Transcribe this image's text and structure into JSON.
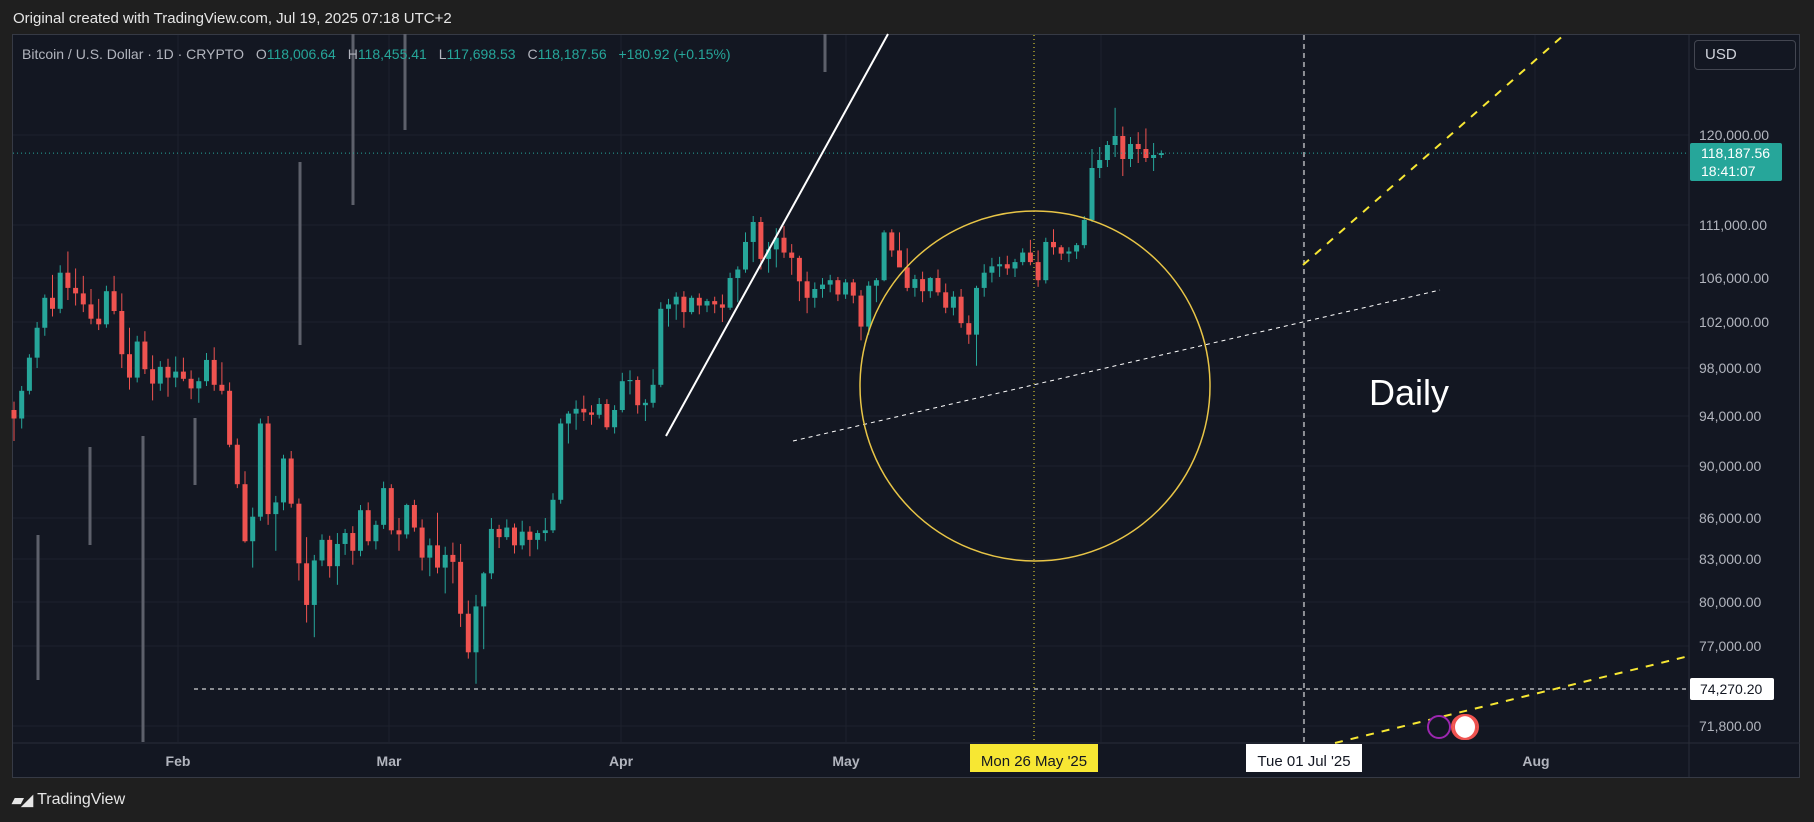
{
  "caption": "Original created with TradingView.com, Jul 19, 2025 07:18 UTC+2",
  "legend": {
    "symbol": "Bitcoin / U.S. Dollar · 1D · CRYPTO",
    "o_label": "O",
    "o_value": "118,006.64",
    "h_label": "H",
    "h_value": "118,455.41",
    "l_label": "L",
    "l_value": "117,698.53",
    "c_label": "C",
    "c_value": "118,187.56",
    "change": "+180.92 (+0.15%)"
  },
  "currency": "USD",
  "footer": {
    "brand": "TradingView"
  },
  "annotation": "Daily",
  "colors": {
    "up": "#26a69a",
    "down": "#ef5350",
    "bg": "#131722",
    "grid": "#1e222d",
    "accent_yellow": "#f7e733",
    "current_price_bg": "#26a69a"
  },
  "chart_data": {
    "type": "candlestick",
    "symbol": "BTCUSD",
    "timeframe": "1D",
    "yaxis_ticks": [
      "120,000.00",
      "111,000.00",
      "106,000.00",
      "102,000.00",
      "98,000.00",
      "94,000.00",
      "90,000.00",
      "86,000.00",
      "83,000.00",
      "80,000.00",
      "77,000.00",
      "71,800.00"
    ],
    "yaxis_tick_values": [
      120000,
      111000,
      106000,
      102000,
      98000,
      94000,
      90000,
      86000,
      83000,
      80000,
      77000,
      71800
    ],
    "xaxis_ticks": [
      "Feb",
      "Mar",
      "Apr",
      "May",
      "Aug"
    ],
    "crosshair_dates": [
      "Mon 26 May '25",
      "Tue 01 Jul '25"
    ],
    "price_labels": {
      "current_price": "118,187.56",
      "countdown": "18:41:07",
      "horizontal_level": "74,270.20"
    },
    "horizontal_level": 74270.2,
    "last_close": 118187.56,
    "candles_ohlc": [
      [
        94500,
        95200,
        92000,
        93800
      ],
      [
        93800,
        96500,
        93000,
        96100
      ],
      [
        96100,
        99200,
        95800,
        98900
      ],
      [
        98900,
        102000,
        98000,
        101500
      ],
      [
        101500,
        104500,
        100800,
        104200
      ],
      [
        104200,
        106300,
        102500,
        103200
      ],
      [
        103200,
        107200,
        102800,
        106500
      ],
      [
        106500,
        108500,
        104000,
        105100
      ],
      [
        105100,
        106900,
        103500,
        104600
      ],
      [
        104600,
        106200,
        102900,
        103600
      ],
      [
        103600,
        105000,
        101800,
        102300
      ],
      [
        102300,
        104100,
        101300,
        101800
      ],
      [
        101800,
        105300,
        101500,
        104800
      ],
      [
        104800,
        106200,
        102700,
        103000
      ],
      [
        103000,
        104600,
        98000,
        99200
      ],
      [
        99200,
        101500,
        96200,
        97200
      ],
      [
        97200,
        100800,
        96800,
        100300
      ],
      [
        100300,
        101200,
        97500,
        97900
      ],
      [
        97900,
        99100,
        95300,
        96700
      ],
      [
        96700,
        98600,
        96100,
        98100
      ],
      [
        98100,
        98800,
        95600,
        97200
      ],
      [
        97200,
        99000,
        96400,
        97700
      ],
      [
        97700,
        98900,
        96900,
        97100
      ],
      [
        97100,
        97800,
        95400,
        96300
      ],
      [
        96300,
        97200,
        95100,
        96900
      ],
      [
        96900,
        99300,
        96500,
        98700
      ],
      [
        98700,
        99800,
        96100,
        96600
      ],
      [
        96600,
        98500,
        95800,
        96100
      ],
      [
        96100,
        96800,
        91500,
        91700
      ],
      [
        91700,
        92200,
        88300,
        88600
      ],
      [
        88600,
        89600,
        84200,
        84300
      ],
      [
        84300,
        86800,
        82400,
        86100
      ],
      [
        86100,
        93800,
        85800,
        93400
      ],
      [
        93400,
        94000,
        85500,
        86300
      ],
      [
        86300,
        87700,
        83600,
        87200
      ],
      [
        87200,
        90900,
        86600,
        90600
      ],
      [
        90600,
        91200,
        86800,
        87100
      ],
      [
        87100,
        87500,
        81500,
        82700
      ],
      [
        82700,
        84600,
        78600,
        79800
      ],
      [
        79800,
        83300,
        77600,
        82900
      ],
      [
        82900,
        84800,
        82500,
        84400
      ],
      [
        84400,
        84700,
        81700,
        82500
      ],
      [
        82500,
        84900,
        81200,
        84100
      ],
      [
        84100,
        85200,
        83300,
        84900
      ],
      [
        84900,
        85400,
        82600,
        83600
      ],
      [
        83600,
        87000,
        83200,
        86600
      ],
      [
        86600,
        87200,
        84000,
        84300
      ],
      [
        84300,
        85800,
        83700,
        85500
      ],
      [
        85500,
        88800,
        85200,
        88300
      ],
      [
        88300,
        88600,
        84800,
        85100
      ],
      [
        85100,
        86000,
        83600,
        84800
      ],
      [
        84800,
        87100,
        84500,
        87000
      ],
      [
        87000,
        87400,
        85000,
        85300
      ],
      [
        85300,
        85900,
        82200,
        83100
      ],
      [
        83100,
        84500,
        81800,
        84000
      ],
      [
        84000,
        86400,
        82000,
        82400
      ],
      [
        82400,
        83900,
        80600,
        83300
      ],
      [
        83300,
        84200,
        81300,
        82800
      ],
      [
        82800,
        84100,
        78300,
        79200
      ],
      [
        79200,
        80100,
        76200,
        76600
      ],
      [
        76600,
        80500,
        74600,
        79700
      ],
      [
        79700,
        82100,
        76800,
        82000
      ],
      [
        82000,
        86000,
        81600,
        85200
      ],
      [
        85200,
        85500,
        83800,
        84600
      ],
      [
        84600,
        85900,
        84400,
        85300
      ],
      [
        85300,
        85600,
        83400,
        84000
      ],
      [
        84000,
        85800,
        83700,
        85000
      ],
      [
        85000,
        85400,
        83200,
        84400
      ],
      [
        84400,
        85100,
        83700,
        84900
      ],
      [
        84900,
        86000,
        84300,
        85100
      ],
      [
        85100,
        87900,
        84900,
        87400
      ],
      [
        87400,
        93800,
        87100,
        93400
      ],
      [
        93400,
        94400,
        91800,
        94200
      ],
      [
        94200,
        95300,
        92900,
        94600
      ],
      [
        94600,
        95700,
        93600,
        94300
      ],
      [
        94300,
        94900,
        93300,
        94100
      ],
      [
        94100,
        95500,
        93800,
        95000
      ],
      [
        95000,
        95400,
        92900,
        93100
      ],
      [
        93100,
        94900,
        92600,
        94500
      ],
      [
        94500,
        97600,
        94300,
        96900
      ],
      [
        96900,
        97800,
        95800,
        97000
      ],
      [
        97000,
        97300,
        94200,
        94900
      ],
      [
        94900,
        95400,
        93600,
        95100
      ],
      [
        95100,
        97900,
        94700,
        96600
      ],
      [
        96600,
        103800,
        96400,
        103200
      ],
      [
        103200,
        104100,
        101600,
        103600
      ],
      [
        103600,
        104700,
        102200,
        104300
      ],
      [
        104300,
        104800,
        101500,
        102900
      ],
      [
        102900,
        104400,
        102700,
        104200
      ],
      [
        104200,
        104600,
        102700,
        103500
      ],
      [
        103500,
        104100,
        102900,
        103900
      ],
      [
        103900,
        104300,
        102800,
        103600
      ],
      [
        103600,
        104500,
        102000,
        103300
      ],
      [
        103300,
        106500,
        103100,
        106000
      ],
      [
        106000,
        107100,
        103800,
        106800
      ],
      [
        106800,
        110300,
        106500,
        109400
      ],
      [
        109400,
        111900,
        107500,
        111300
      ],
      [
        111300,
        111800,
        106800,
        107800
      ],
      [
        107800,
        109400,
        106500,
        108700
      ],
      [
        108700,
        110700,
        107000,
        109800
      ],
      [
        109800,
        110900,
        107900,
        108400
      ],
      [
        108400,
        109200,
        106300,
        107900
      ],
      [
        107900,
        108100,
        103900,
        105700
      ],
      [
        105700,
        106600,
        102800,
        104200
      ],
      [
        104200,
        105600,
        103300,
        105000
      ],
      [
        105000,
        106000,
        104200,
        105400
      ],
      [
        105400,
        106300,
        104700,
        105800
      ],
      [
        105800,
        106100,
        103900,
        104500
      ],
      [
        104500,
        105900,
        104100,
        105600
      ],
      [
        105600,
        105900,
        103700,
        104400
      ],
      [
        104400,
        104900,
        100400,
        101600
      ],
      [
        101600,
        105700,
        100900,
        105300
      ],
      [
        105300,
        106000,
        103800,
        105800
      ],
      [
        105800,
        110500,
        105700,
        110300
      ],
      [
        110300,
        110600,
        108000,
        108600
      ],
      [
        108600,
        110300,
        107300,
        107000
      ],
      [
        107000,
        108800,
        104800,
        105100
      ],
      [
        105100,
        106300,
        104300,
        105900
      ],
      [
        105900,
        106600,
        103800,
        104800
      ],
      [
        104800,
        106100,
        104200,
        106000
      ],
      [
        106000,
        106800,
        104400,
        104700
      ],
      [
        104700,
        105500,
        102800,
        103300
      ],
      [
        103300,
        104800,
        102600,
        104300
      ],
      [
        104300,
        105000,
        101500,
        101900
      ],
      [
        101900,
        102600,
        100100,
        100900
      ],
      [
        100900,
        105300,
        98200,
        105100
      ],
      [
        105100,
        107300,
        104300,
        106500
      ],
      [
        106500,
        107900,
        105600,
        107100
      ],
      [
        107100,
        108000,
        106100,
        107300
      ],
      [
        107300,
        108100,
        106300,
        106900
      ],
      [
        106900,
        107800,
        106100,
        107500
      ],
      [
        107500,
        108800,
        107200,
        108400
      ],
      [
        108400,
        109600,
        107200,
        107500
      ],
      [
        107500,
        108600,
        105200,
        105800
      ],
      [
        105800,
        109800,
        105500,
        109400
      ],
      [
        109400,
        110600,
        108200,
        108900
      ],
      [
        108900,
        109100,
        107700,
        108300
      ],
      [
        108300,
        108900,
        107500,
        108500
      ],
      [
        108500,
        109300,
        107800,
        109100
      ],
      [
        109100,
        111900,
        108800,
        111500
      ],
      [
        111500,
        118600,
        111300,
        116700
      ],
      [
        116700,
        118800,
        115700,
        117500
      ],
      [
        117500,
        119400,
        116800,
        119000
      ],
      [
        119000,
        122900,
        117800,
        119900
      ],
      [
        119900,
        120900,
        115900,
        117600
      ],
      [
        117600,
        119800,
        116800,
        119100
      ],
      [
        119100,
        120300,
        117200,
        118600
      ],
      [
        118600,
        120700,
        117300,
        117700
      ],
      [
        117700,
        119200,
        116400,
        118000
      ],
      [
        118000,
        118460,
        117700,
        118190
      ]
    ]
  }
}
